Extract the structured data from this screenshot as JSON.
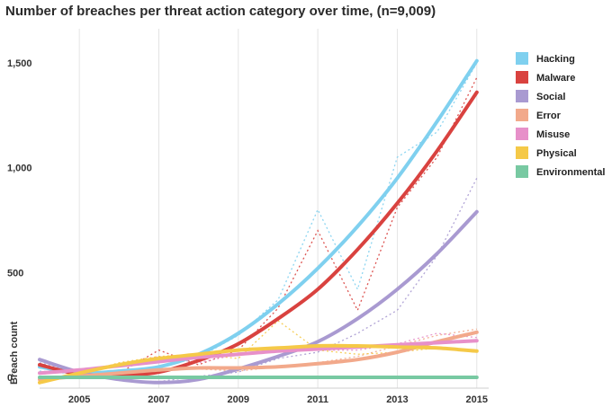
{
  "chart_data": {
    "type": "line",
    "title": "Number of breaches per threat action category over time, (n=9,009)",
    "xlabel": "",
    "ylabel": "Breach count",
    "x_ticks": [
      2005,
      2007,
      2009,
      2011,
      2013,
      2015
    ],
    "y_ticks": [
      0,
      500,
      1000,
      1500
    ],
    "y_tick_labels": [
      "0",
      "500",
      "1,000",
      "1,500"
    ],
    "xlim": [
      2004,
      2015.3
    ],
    "ylim": [
      -30,
      1560
    ],
    "grid": "vertical",
    "legend_position": "right",
    "x": [
      2004,
      2005,
      2006,
      2007,
      2008,
      2009,
      2010,
      2011,
      2012,
      2013,
      2014,
      2015
    ],
    "series": [
      {
        "name": "Hacking",
        "color": "#7fd0ef",
        "trend": [
          50,
          20,
          30,
          50,
          110,
          210,
          350,
          520,
          720,
          950,
          1220,
          1510
        ],
        "actual": [
          30,
          15,
          25,
          45,
          95,
          200,
          370,
          800,
          420,
          1050,
          1170,
          1500
        ]
      },
      {
        "name": "Malware",
        "color": "#d9423f",
        "trend": [
          60,
          15,
          10,
          25,
          80,
          160,
          280,
          420,
          610,
          830,
          1080,
          1360
        ],
        "actual": [
          50,
          10,
          20,
          130,
          60,
          130,
          330,
          700,
          320,
          810,
          1050,
          1430
        ]
      },
      {
        "name": "Social",
        "color": "#a99ad1",
        "trend": [
          85,
          25,
          -10,
          -25,
          -10,
          40,
          100,
          170,
          280,
          420,
          590,
          790
        ],
        "actual": [
          70,
          20,
          -15,
          -20,
          5,
          25,
          90,
          120,
          210,
          320,
          580,
          950
        ]
      },
      {
        "name": "Error",
        "color": "#f2a98b",
        "trend": [
          -10,
          5,
          20,
          35,
          45,
          45,
          50,
          65,
          85,
          120,
          170,
          215
        ],
        "actual": [
          -5,
          5,
          25,
          40,
          40,
          30,
          50,
          70,
          100,
          150,
          200,
          230
        ]
      },
      {
        "name": "Misuse",
        "color": "#e790c9",
        "trend": [
          20,
          35,
          55,
          75,
          95,
          110,
          125,
          135,
          145,
          155,
          165,
          175
        ],
        "actual": [
          15,
          30,
          60,
          100,
          70,
          110,
          140,
          130,
          130,
          160,
          210,
          190
        ]
      },
      {
        "name": "Physical",
        "color": "#f5c948",
        "trend": [
          -25,
          20,
          60,
          90,
          110,
          130,
          140,
          150,
          150,
          145,
          140,
          125
        ],
        "actual": [
          -20,
          15,
          70,
          100,
          110,
          90,
          270,
          130,
          110,
          120,
          140,
          120
        ]
      },
      {
        "name": "Environmental",
        "color": "#78c9a2",
        "trend": [
          0,
          0,
          0,
          0,
          0,
          0,
          0,
          0,
          0,
          0,
          0,
          0
        ],
        "actual": [
          0,
          0,
          0,
          0,
          0,
          0,
          0,
          0,
          0,
          0,
          0,
          0
        ]
      }
    ]
  }
}
